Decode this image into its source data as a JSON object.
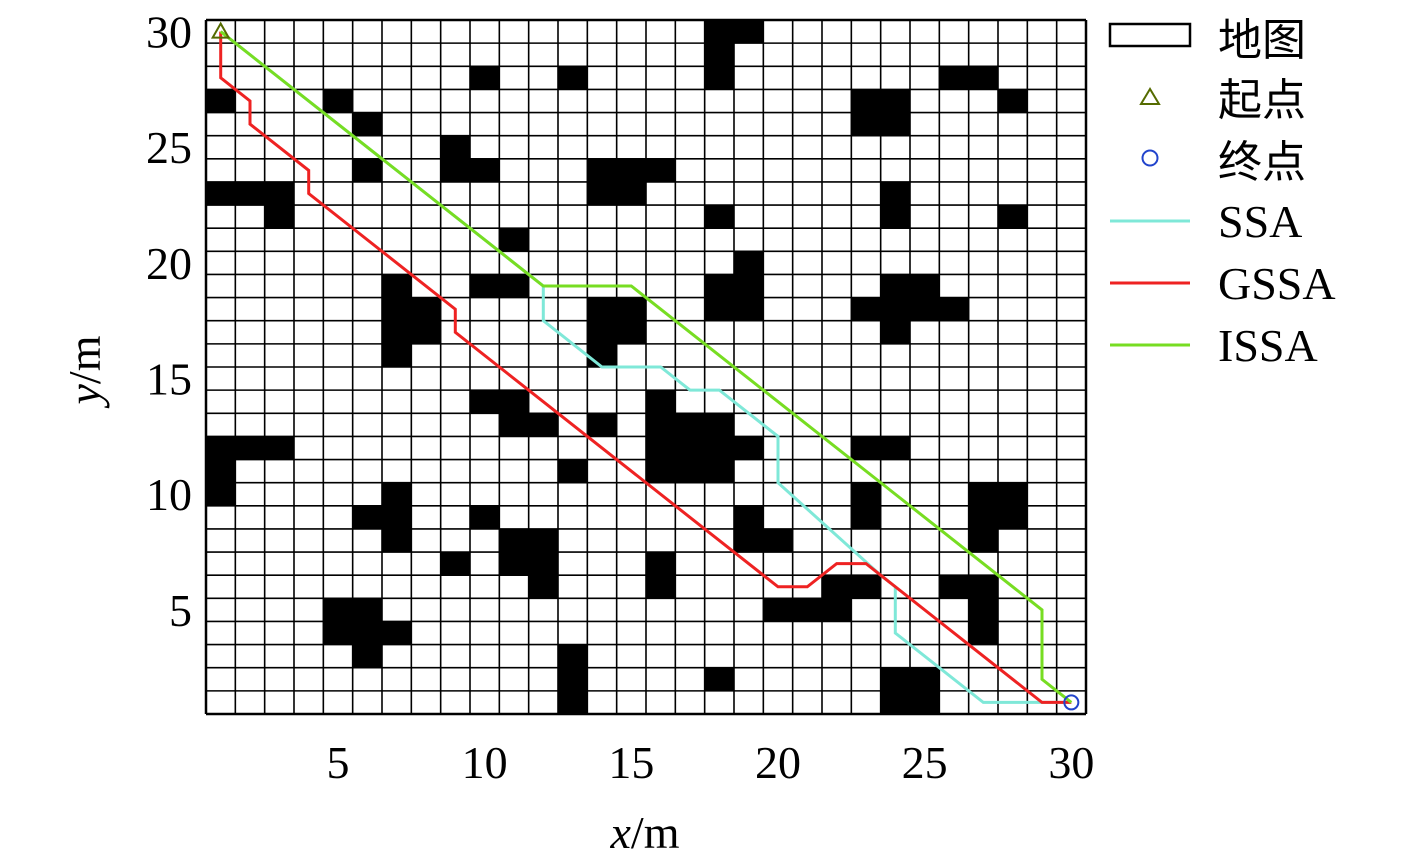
{
  "chart_data": {
    "type": "grid-path",
    "grid_size": [
      30,
      30
    ],
    "xlim": [
      0.5,
      30.5
    ],
    "ylim": [
      0.5,
      30.5
    ],
    "xticks": [
      5,
      10,
      15,
      20,
      25,
      30
    ],
    "yticks": [
      5,
      10,
      15,
      20,
      25,
      30
    ],
    "xlabel_var": "x",
    "xlabel_unit": "/m",
    "ylabel_var": "y",
    "ylabel_unit": "/m",
    "obstacles": [
      [
        18,
        30
      ],
      [
        19,
        30
      ],
      [
        18,
        29
      ],
      [
        10,
        28
      ],
      [
        13,
        28
      ],
      [
        18,
        28
      ],
      [
        26,
        28
      ],
      [
        27,
        28
      ],
      [
        1,
        27
      ],
      [
        5,
        27
      ],
      [
        23,
        27
      ],
      [
        24,
        27
      ],
      [
        28,
        27
      ],
      [
        6,
        26
      ],
      [
        23,
        26
      ],
      [
        24,
        26
      ],
      [
        9,
        25
      ],
      [
        6,
        24
      ],
      [
        9,
        24
      ],
      [
        10,
        24
      ],
      [
        14,
        24
      ],
      [
        15,
        24
      ],
      [
        16,
        24
      ],
      [
        1,
        23
      ],
      [
        2,
        23
      ],
      [
        3,
        23
      ],
      [
        14,
        23
      ],
      [
        15,
        23
      ],
      [
        24,
        23
      ],
      [
        3,
        22
      ],
      [
        18,
        22
      ],
      [
        24,
        22
      ],
      [
        28,
        22
      ],
      [
        11,
        21
      ],
      [
        19,
        20
      ],
      [
        7,
        19
      ],
      [
        10,
        19
      ],
      [
        11,
        19
      ],
      [
        18,
        19
      ],
      [
        19,
        19
      ],
      [
        24,
        19
      ],
      [
        25,
        19
      ],
      [
        7,
        18
      ],
      [
        8,
        18
      ],
      [
        14,
        18
      ],
      [
        15,
        18
      ],
      [
        18,
        18
      ],
      [
        19,
        18
      ],
      [
        23,
        18
      ],
      [
        24,
        18
      ],
      [
        25,
        18
      ],
      [
        26,
        18
      ],
      [
        7,
        17
      ],
      [
        8,
        17
      ],
      [
        14,
        17
      ],
      [
        15,
        17
      ],
      [
        24,
        17
      ],
      [
        7,
        16
      ],
      [
        14,
        16
      ],
      [
        10,
        14
      ],
      [
        11,
        14
      ],
      [
        16,
        14
      ],
      [
        11,
        13
      ],
      [
        12,
        13
      ],
      [
        14,
        13
      ],
      [
        16,
        13
      ],
      [
        17,
        13
      ],
      [
        18,
        13
      ],
      [
        1,
        12
      ],
      [
        2,
        12
      ],
      [
        3,
        12
      ],
      [
        16,
        12
      ],
      [
        17,
        12
      ],
      [
        18,
        12
      ],
      [
        19,
        12
      ],
      [
        23,
        12
      ],
      [
        24,
        12
      ],
      [
        1,
        11
      ],
      [
        13,
        11
      ],
      [
        16,
        11
      ],
      [
        17,
        11
      ],
      [
        18,
        11
      ],
      [
        1,
        10
      ],
      [
        7,
        10
      ],
      [
        23,
        10
      ],
      [
        27,
        10
      ],
      [
        28,
        10
      ],
      [
        6,
        9
      ],
      [
        7,
        9
      ],
      [
        10,
        9
      ],
      [
        19,
        9
      ],
      [
        23,
        9
      ],
      [
        27,
        9
      ],
      [
        28,
        9
      ],
      [
        7,
        8
      ],
      [
        11,
        8
      ],
      [
        12,
        8
      ],
      [
        19,
        8
      ],
      [
        20,
        8
      ],
      [
        27,
        8
      ],
      [
        9,
        7
      ],
      [
        11,
        7
      ],
      [
        12,
        7
      ],
      [
        16,
        7
      ],
      [
        12,
        6
      ],
      [
        16,
        6
      ],
      [
        22,
        6
      ],
      [
        23,
        6
      ],
      [
        26,
        6
      ],
      [
        27,
        6
      ],
      [
        5,
        5
      ],
      [
        6,
        5
      ],
      [
        20,
        5
      ],
      [
        21,
        5
      ],
      [
        22,
        5
      ],
      [
        27,
        5
      ],
      [
        5,
        4
      ],
      [
        6,
        4
      ],
      [
        7,
        4
      ],
      [
        27,
        4
      ],
      [
        6,
        3
      ],
      [
        13,
        3
      ],
      [
        13,
        2
      ],
      [
        24,
        2
      ],
      [
        25,
        2
      ],
      [
        13,
        1
      ],
      [
        18,
        2
      ],
      [
        24,
        1
      ],
      [
        25,
        1
      ]
    ],
    "start": [
      1,
      30
    ],
    "goal": [
      30,
      1
    ],
    "series": [
      {
        "name": "SSA",
        "color": "#7fe8d8",
        "points": [
          [
            1,
            30
          ],
          [
            12,
            19
          ],
          [
            12,
            17.5
          ],
          [
            14,
            15.5
          ],
          [
            16,
            15.5
          ],
          [
            17,
            14.5
          ],
          [
            18,
            14.5
          ],
          [
            20,
            12.5
          ],
          [
            20,
            10.5
          ],
          [
            23.5,
            6.5
          ],
          [
            24,
            6
          ],
          [
            24,
            4
          ],
          [
            27,
            1
          ],
          [
            29,
            1
          ],
          [
            30,
            1
          ]
        ]
      },
      {
        "name": "GSSA",
        "color": "#ee2222",
        "points": [
          [
            1,
            30
          ],
          [
            1,
            28
          ],
          [
            2,
            27
          ],
          [
            2,
            26
          ],
          [
            4,
            24
          ],
          [
            4,
            23
          ],
          [
            9,
            18
          ],
          [
            9,
            17
          ],
          [
            20,
            6
          ],
          [
            21,
            6
          ],
          [
            22,
            7
          ],
          [
            23,
            7
          ],
          [
            29,
            1
          ],
          [
            30,
            1
          ]
        ]
      },
      {
        "name": "ISSA",
        "color": "#77dd22",
        "points": [
          [
            1,
            30
          ],
          [
            12,
            19
          ],
          [
            15,
            19
          ],
          [
            29,
            5
          ],
          [
            29,
            2
          ],
          [
            30,
            1
          ]
        ]
      }
    ],
    "legend": {
      "position": "right",
      "map_label": "地图",
      "start_label": "起点",
      "goal_label": "终点",
      "start_marker_color": "#556b00",
      "goal_marker_color": "#2244cc"
    }
  }
}
